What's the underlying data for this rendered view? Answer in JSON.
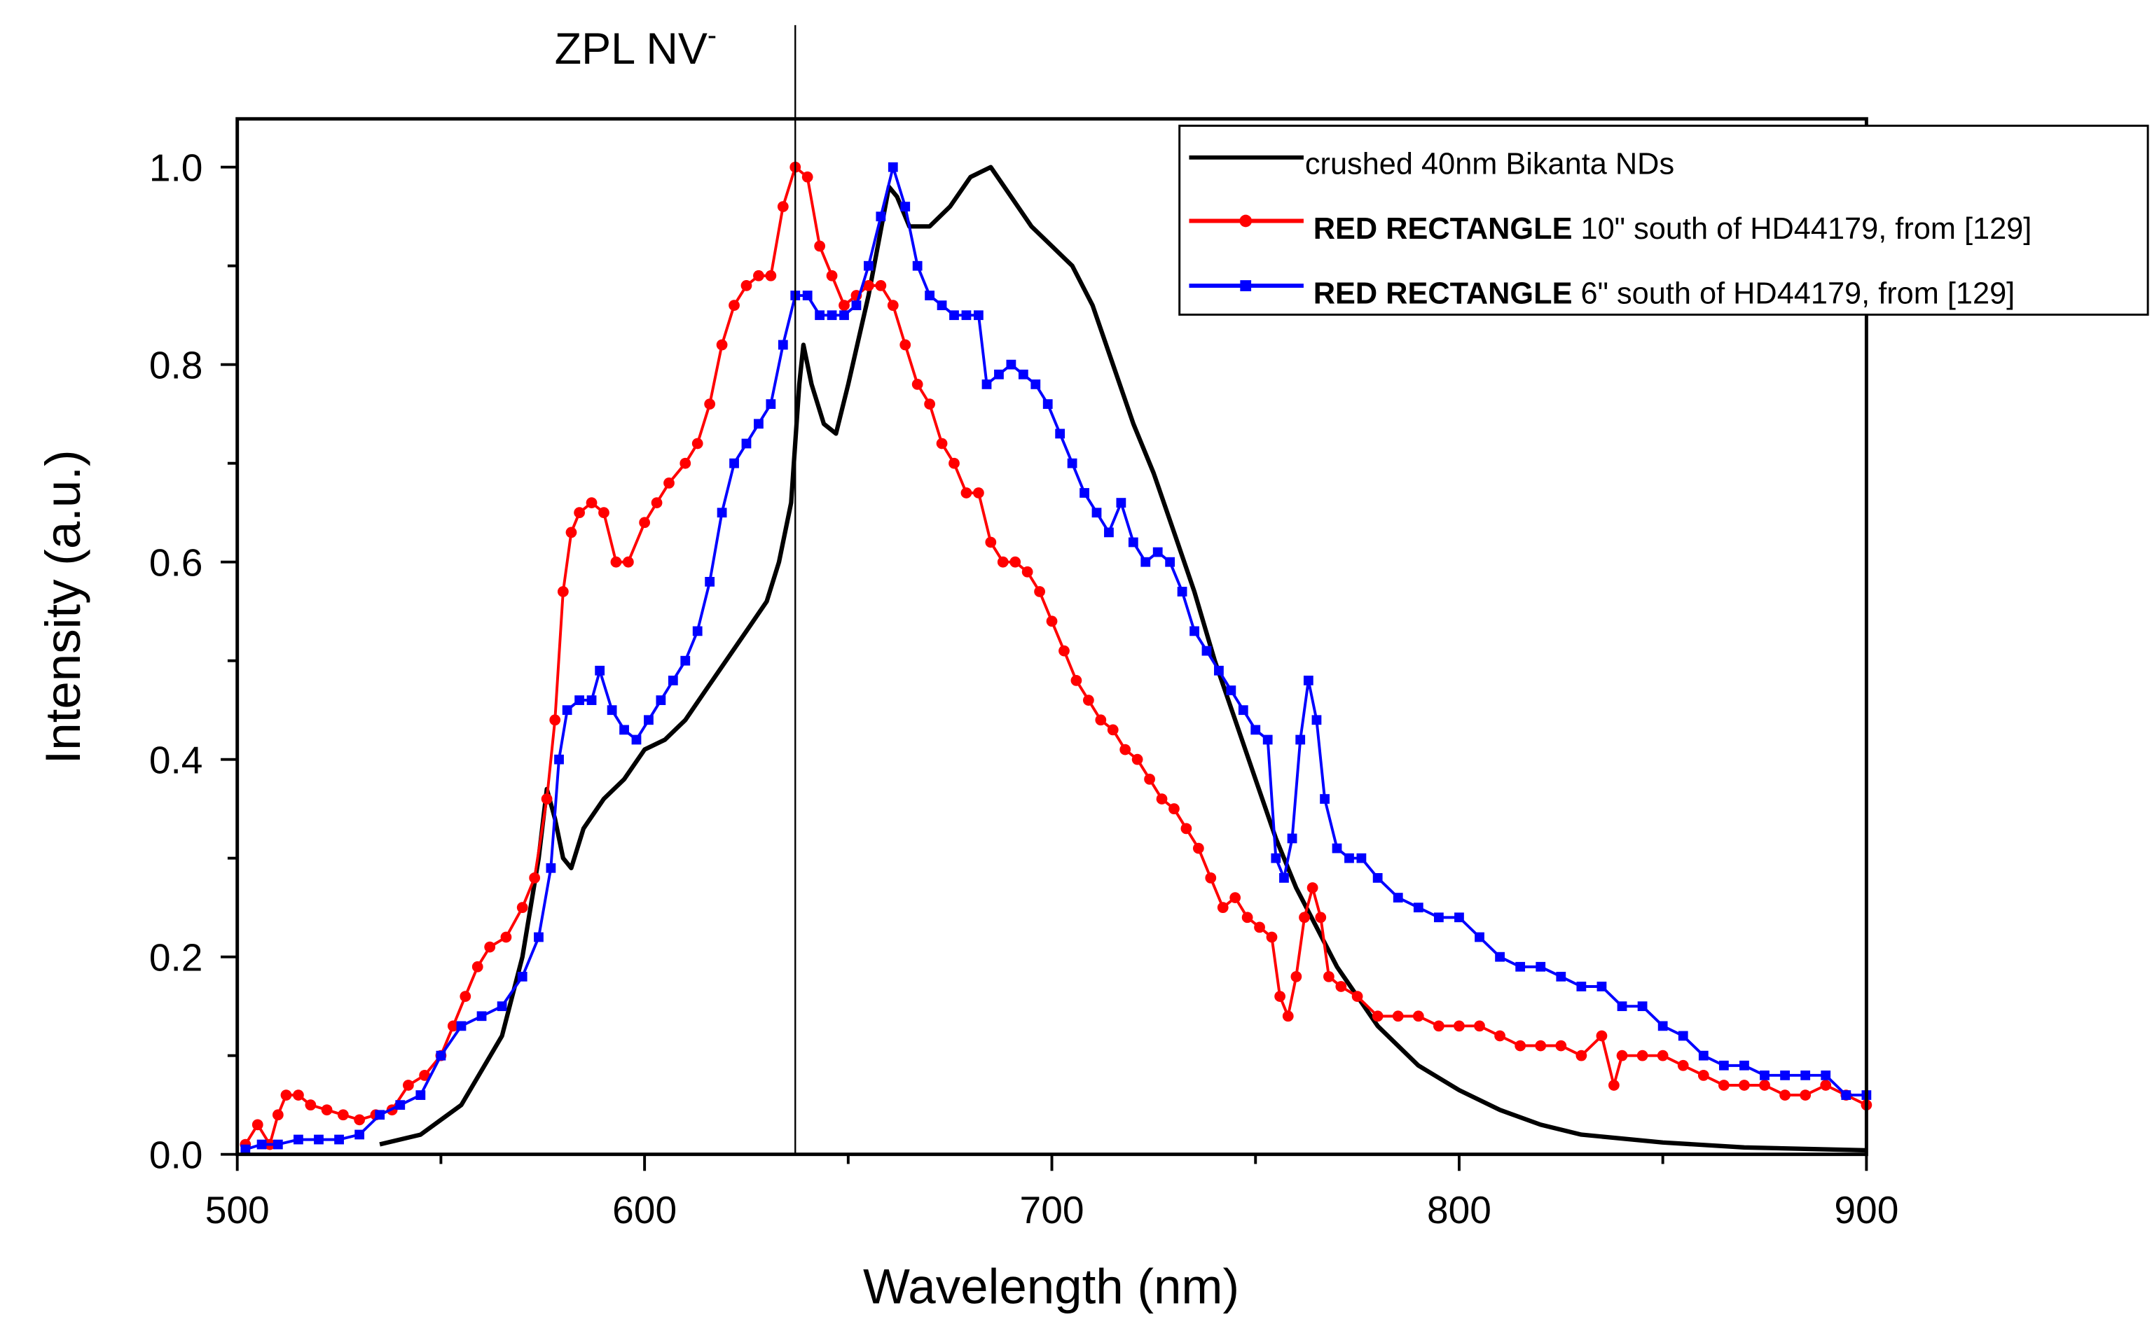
{
  "chart_data": {
    "type": "line",
    "title": "",
    "xlabel": "Wavelength (nm)",
    "ylabel": "Intensity (a.u.)",
    "xlim": [
      500,
      900
    ],
    "ylim": [
      0,
      1.0
    ],
    "x_ticks": [
      "500",
      "600",
      "700",
      "800",
      "900"
    ],
    "y_ticks": [
      "0.0",
      "0.2",
      "0.4",
      "0.6",
      "0.8",
      "1.0"
    ],
    "grid": false,
    "legend_position": "top-right",
    "annotation": {
      "label": "ZPL NV",
      "superscript": "-",
      "x": 637
    },
    "series": [
      {
        "name": "crushed 40nm Bikanta NDs",
        "legend_bold": "",
        "legend_rest": "crushed 40nm Bikanta NDs",
        "color": "#000000",
        "marker": "none",
        "x": [
          535,
          545,
          555,
          565,
          570,
          574,
          576,
          578,
          580,
          582,
          585,
          590,
          595,
          600,
          605,
          610,
          615,
          620,
          625,
          630,
          633,
          636,
          638,
          639,
          641,
          644,
          647,
          650,
          655,
          660,
          662,
          665,
          670,
          675,
          680,
          685,
          690,
          695,
          700,
          705,
          710,
          715,
          720,
          725,
          730,
          735,
          740,
          745,
          750,
          755,
          760,
          765,
          770,
          775,
          780,
          790,
          800,
          810,
          820,
          830,
          850,
          870,
          900
        ],
        "y": [
          0.01,
          0.02,
          0.05,
          0.12,
          0.2,
          0.3,
          0.37,
          0.34,
          0.3,
          0.29,
          0.33,
          0.36,
          0.38,
          0.41,
          0.42,
          0.44,
          0.47,
          0.5,
          0.53,
          0.56,
          0.6,
          0.66,
          0.78,
          0.82,
          0.78,
          0.74,
          0.73,
          0.78,
          0.87,
          0.98,
          0.97,
          0.94,
          0.94,
          0.96,
          0.99,
          1.0,
          0.97,
          0.94,
          0.92,
          0.9,
          0.86,
          0.8,
          0.74,
          0.69,
          0.63,
          0.57,
          0.5,
          0.44,
          0.38,
          0.32,
          0.27,
          0.23,
          0.19,
          0.16,
          0.13,
          0.09,
          0.065,
          0.045,
          0.03,
          0.02,
          0.012,
          0.007,
          0.004
        ]
      },
      {
        "name": "RED RECTANGLE 10\" south of HD44179, from [129]",
        "legend_bold": "RED RECTANGLE",
        "legend_rest": " 10\" south of HD44179, from [129]",
        "color": "#ff0000",
        "marker": "circle",
        "x": [
          502,
          505,
          508,
          510,
          512,
          515,
          518,
          522,
          526,
          530,
          534,
          538,
          542,
          546,
          550,
          553,
          556,
          559,
          562,
          566,
          570,
          573,
          576,
          578,
          580,
          582,
          584,
          587,
          590,
          593,
          596,
          600,
          603,
          606,
          610,
          613,
          616,
          619,
          622,
          625,
          628,
          631,
          634,
          637,
          640,
          643,
          646,
          649,
          652,
          655,
          658,
          661,
          664,
          667,
          670,
          673,
          676,
          679,
          682,
          685,
          688,
          691,
          694,
          697,
          700,
          703,
          706,
          709,
          712,
          715,
          718,
          721,
          724,
          727,
          730,
          733,
          736,
          739,
          742,
          745,
          748,
          751,
          754,
          756,
          758,
          760,
          762,
          764,
          766,
          768,
          771,
          775,
          780,
          785,
          790,
          795,
          800,
          805,
          810,
          815,
          820,
          825,
          830,
          835,
          838,
          840,
          845,
          850,
          855,
          860,
          865,
          870,
          875,
          880,
          885,
          890,
          895,
          900
        ],
        "y": [
          0.01,
          0.03,
          0.01,
          0.04,
          0.06,
          0.06,
          0.05,
          0.045,
          0.04,
          0.035,
          0.04,
          0.045,
          0.07,
          0.08,
          0.1,
          0.13,
          0.16,
          0.19,
          0.21,
          0.22,
          0.25,
          0.28,
          0.36,
          0.44,
          0.57,
          0.63,
          0.65,
          0.66,
          0.65,
          0.6,
          0.6,
          0.64,
          0.66,
          0.68,
          0.7,
          0.72,
          0.76,
          0.82,
          0.86,
          0.88,
          0.89,
          0.89,
          0.96,
          1.0,
          0.99,
          0.92,
          0.89,
          0.86,
          0.87,
          0.88,
          0.88,
          0.86,
          0.82,
          0.78,
          0.76,
          0.72,
          0.7,
          0.67,
          0.67,
          0.62,
          0.6,
          0.6,
          0.59,
          0.57,
          0.54,
          0.51,
          0.48,
          0.46,
          0.44,
          0.43,
          0.41,
          0.4,
          0.38,
          0.36,
          0.35,
          0.33,
          0.31,
          0.28,
          0.25,
          0.26,
          0.24,
          0.23,
          0.22,
          0.16,
          0.14,
          0.18,
          0.24,
          0.27,
          0.24,
          0.18,
          0.17,
          0.16,
          0.14,
          0.14,
          0.14,
          0.13,
          0.13,
          0.13,
          0.12,
          0.11,
          0.11,
          0.11,
          0.1,
          0.12,
          0.07,
          0.1,
          0.1,
          0.1,
          0.09,
          0.08,
          0.07,
          0.07,
          0.07,
          0.06,
          0.06,
          0.07,
          0.06,
          0.05
        ]
      },
      {
        "name": "RED RECTANGLE 6\" south of HD44179, from [129]",
        "legend_bold": "RED RECTANGLE",
        "legend_rest": " 6\" south of HD44179, from [129]",
        "color": "#0000ff",
        "marker": "square",
        "x": [
          502,
          506,
          510,
          515,
          520,
          525,
          530,
          535,
          540,
          545,
          550,
          555,
          560,
          565,
          570,
          574,
          577,
          579,
          581,
          584,
          587,
          589,
          592,
          595,
          598,
          601,
          604,
          607,
          610,
          613,
          616,
          619,
          622,
          625,
          628,
          631,
          634,
          637,
          640,
          643,
          646,
          649,
          652,
          655,
          658,
          661,
          664,
          667,
          670,
          673,
          676,
          679,
          682,
          684,
          687,
          690,
          693,
          696,
          699,
          702,
          705,
          708,
          711,
          714,
          717,
          720,
          723,
          726,
          729,
          732,
          735,
          738,
          741,
          744,
          747,
          750,
          753,
          755,
          757,
          759,
          761,
          763,
          765,
          767,
          770,
          773,
          776,
          780,
          785,
          790,
          795,
          800,
          805,
          810,
          815,
          820,
          825,
          830,
          835,
          840,
          845,
          850,
          855,
          860,
          865,
          870,
          875,
          880,
          885,
          890,
          895,
          900
        ],
        "y": [
          0.005,
          0.01,
          0.01,
          0.015,
          0.015,
          0.015,
          0.02,
          0.04,
          0.05,
          0.06,
          0.1,
          0.13,
          0.14,
          0.15,
          0.18,
          0.22,
          0.29,
          0.4,
          0.45,
          0.46,
          0.46,
          0.49,
          0.45,
          0.43,
          0.42,
          0.44,
          0.46,
          0.48,
          0.5,
          0.53,
          0.58,
          0.65,
          0.7,
          0.72,
          0.74,
          0.76,
          0.82,
          0.87,
          0.87,
          0.85,
          0.85,
          0.85,
          0.86,
          0.9,
          0.95,
          1.0,
          0.96,
          0.9,
          0.87,
          0.86,
          0.85,
          0.85,
          0.85,
          0.78,
          0.79,
          0.8,
          0.79,
          0.78,
          0.76,
          0.73,
          0.7,
          0.67,
          0.65,
          0.63,
          0.66,
          0.62,
          0.6,
          0.61,
          0.6,
          0.57,
          0.53,
          0.51,
          0.49,
          0.47,
          0.45,
          0.43,
          0.42,
          0.3,
          0.28,
          0.32,
          0.42,
          0.48,
          0.44,
          0.36,
          0.31,
          0.3,
          0.3,
          0.28,
          0.26,
          0.25,
          0.24,
          0.24,
          0.22,
          0.2,
          0.19,
          0.19,
          0.18,
          0.17,
          0.17,
          0.15,
          0.15,
          0.13,
          0.12,
          0.1,
          0.09,
          0.09,
          0.08,
          0.08,
          0.08,
          0.08,
          0.06,
          0.06
        ]
      }
    ]
  }
}
